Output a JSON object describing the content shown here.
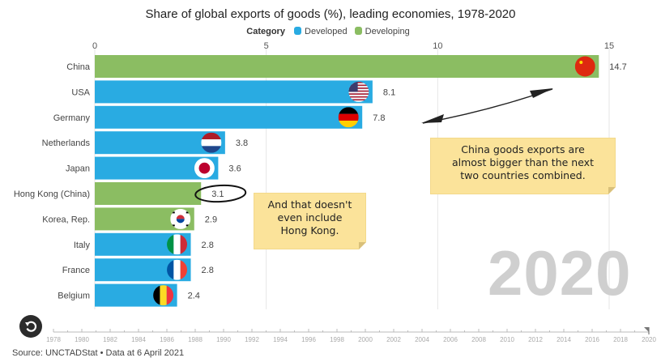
{
  "chart_data": {
    "type": "bar",
    "orientation": "horizontal",
    "title": "Share of global exports of goods (%), leading economies, 1978-2020",
    "legend_title": "Category",
    "legend": [
      {
        "name": "Developed",
        "color": "#29abe2"
      },
      {
        "name": "Developing",
        "color": "#8bbd62"
      }
    ],
    "legend_position": "top-center",
    "categories": [
      "China",
      "USA",
      "Germany",
      "Netherlands",
      "Japan",
      "Hong Kong (China)",
      "Korea, Rep.",
      "Italy",
      "France",
      "Belgium"
    ],
    "values": [
      14.7,
      8.1,
      7.8,
      3.8,
      3.6,
      3.1,
      2.9,
      2.8,
      2.8,
      2.4
    ],
    "value_labels": [
      "14.7",
      "8.1",
      "7.8",
      "3.8",
      "3.6",
      "3.1",
      "2.9",
      "2.8",
      "2.8",
      "2.4"
    ],
    "category_group": [
      "Developing",
      "Developed",
      "Developed",
      "Developed",
      "Developed",
      "Developing",
      "Developing",
      "Developed",
      "Developed",
      "Developed"
    ],
    "flags": [
      "china-flag",
      "usa-flag",
      "germany-flag",
      "netherlands-flag",
      "japan-flag",
      null,
      "korea-flag",
      "italy-flag",
      "france-flag",
      "belgium-flag"
    ],
    "xlim": [
      0,
      15
    ],
    "xticks": [
      0,
      5,
      10,
      15
    ],
    "grid": true,
    "xlabel": "",
    "ylabel": "",
    "current_year": "2020",
    "timeline": {
      "start": 1978,
      "end": 2020,
      "labels": [
        "1978",
        "1980",
        "1982",
        "1984",
        "1986",
        "1988",
        "1990",
        "1992",
        "1994",
        "1996",
        "1998",
        "2000",
        "2002",
        "2004",
        "2006",
        "2008",
        "2010",
        "2012",
        "2014",
        "2016",
        "2018",
        "2020"
      ],
      "current": 2020
    },
    "annotations": [
      {
        "text": "China goods exports are almost bigger than the next two countries combined.",
        "lines": [
          "China goods exports are",
          "almost bigger than the next",
          "two countries combined."
        ]
      },
      {
        "text": "And that doesn't even include Hong Kong.",
        "lines": [
          "And that doesn't",
          "even include",
          "Hong Kong."
        ]
      },
      {
        "type": "circle",
        "target": "Hong Kong (China) value label"
      },
      {
        "type": "double-arrow",
        "between": [
          "USA/Germany",
          "China"
        ]
      }
    ]
  },
  "source": "Source: UNCTADStat • Data at 6 April 2021",
  "controls": {
    "replay_icon": "replay-icon"
  }
}
